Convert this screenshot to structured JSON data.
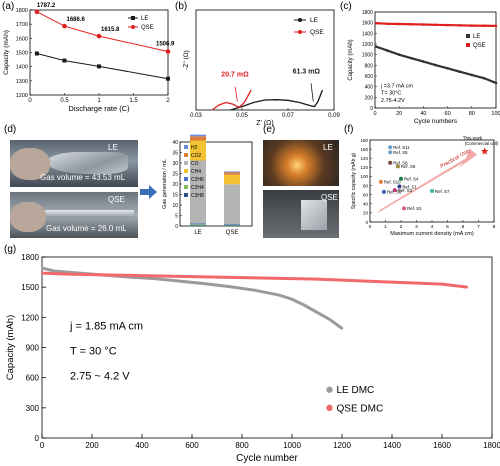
{
  "panel_letters": [
    "(a)",
    "(b)",
    "(c)",
    "(d)",
    "(e)",
    "(f)",
    "(g)"
  ],
  "photos": {
    "d_le_label": "LE",
    "d_le_gas": "Gas volume = 43.53 mL",
    "d_qse_label": "QSE",
    "d_qse_gas": "Gas volume = 26.0 mL",
    "e_top_label": "LE",
    "e_bottom_label": "QSE"
  },
  "colors": {
    "le": "#1a1a1a",
    "qse": "#e02020",
    "le_g": "#9a9a9a",
    "qse_g": "#f06a6a"
  },
  "chart_data": [
    {
      "id": "a",
      "type": "line",
      "xlabel": "Discharge rate  (C)",
      "ylabel": "Capacity (mAh)",
      "xlim": [
        0,
        2
      ],
      "ylim": [
        1200,
        1800
      ],
      "xticks": [
        0,
        0.5,
        1,
        1.5,
        2
      ],
      "yticks": [
        1200,
        1300,
        1400,
        1500,
        1600,
        1700,
        1800
      ],
      "legend": "top-right",
      "series": [
        {
          "name": "LE",
          "x": [
            0.1,
            0.5,
            1,
            2
          ],
          "values": [
            1493,
            1443,
            1402,
            1315
          ],
          "marker": "square"
        },
        {
          "name": "QSE",
          "x": [
            0.1,
            0.5,
            1,
            2
          ],
          "values": [
            1787.2,
            1686.6,
            1615.8,
            1506.9
          ],
          "marker": "circle"
        }
      ],
      "data_labels": [
        "1787.2",
        "1686.6",
        "1615.8",
        "1506.9"
      ]
    },
    {
      "id": "b",
      "type": "line",
      "xlabel": "Z'   (Ω)",
      "ylabel": "-Z''  (Ω)",
      "xlim": [
        0.03,
        0.09
      ],
      "ylim": [
        0,
        0.06
      ],
      "xticks": [
        0.03,
        0.05,
        0.07,
        0.09
      ],
      "legend": "top-right",
      "series": [
        {
          "name": "LE",
          "x": [
            0.045,
            0.05,
            0.055,
            0.06,
            0.065,
            0.07,
            0.075,
            0.08,
            0.0815,
            0.083,
            0.085
          ],
          "values": [
            0.0,
            0.002,
            0.0045,
            0.006,
            0.0062,
            0.0058,
            0.0045,
            0.0025,
            0.002,
            0.005,
            0.012
          ]
        },
        {
          "name": "QSE",
          "x": [
            0.037,
            0.04,
            0.043,
            0.046,
            0.048,
            0.049,
            0.051,
            0.054
          ],
          "values": [
            0.0,
            0.003,
            0.0045,
            0.0035,
            0.002,
            0.0018,
            0.0045,
            0.012
          ]
        }
      ],
      "annotations": [
        "20.7 mΩ",
        "61.3 mΩ"
      ]
    },
    {
      "id": "c",
      "type": "scatter",
      "xlabel": "Cycle numbers",
      "ylabel": "Capacity (mAh)",
      "xlim": [
        0,
        100
      ],
      "ylim": [
        0,
        1800
      ],
      "xticks": [
        0,
        20,
        40,
        60,
        80,
        100
      ],
      "yticks": [
        0,
        200,
        400,
        600,
        800,
        1000,
        1200,
        1400,
        1600,
        1800
      ],
      "legend": "right",
      "series": [
        {
          "name": "LE",
          "x": [
            1,
            10,
            20,
            30,
            40,
            50,
            60,
            70,
            80,
            90,
            100
          ],
          "values": [
            1150,
            1080,
            1000,
            935,
            870,
            805,
            745,
            680,
            620,
            560,
            470
          ]
        },
        {
          "name": "QSE",
          "x": [
            1,
            10,
            20,
            30,
            40,
            50,
            60,
            70,
            80,
            90,
            100
          ],
          "values": [
            1590,
            1580,
            1575,
            1570,
            1565,
            1560,
            1555,
            1550,
            1545,
            1542,
            1540
          ]
        }
      ],
      "annotations": [
        "j =3.7 mA cm",
        "T= 30°C",
        "2.75-4.2V"
      ]
    },
    {
      "id": "d",
      "type": "bar",
      "ylabel": "Gas generation / mL",
      "categories": [
        "LE",
        "QSE"
      ],
      "ylim": [
        0,
        40
      ],
      "yticks": [
        0,
        5,
        10,
        15,
        20,
        25,
        30,
        35,
        40
      ],
      "legend": "top-left",
      "series": [
        {
          "name": "H2",
          "values": [
            0.8,
            0.4
          ],
          "color": "#6a8fd8"
        },
        {
          "name": "CO2",
          "values": [
            2.0,
            1.2
          ],
          "color": "#e07b3a"
        },
        {
          "name": "CO",
          "values": [
            30.0,
            19.0
          ],
          "color": "#b4b4b4"
        },
        {
          "name": "CH4",
          "values": [
            9.5,
            4.5
          ],
          "color": "#f2c232"
        },
        {
          "name": "C2H6",
          "values": [
            0.4,
            0.4
          ],
          "color": "#4a74c8"
        },
        {
          "name": "C2H4",
          "values": [
            0.5,
            0.3
          ],
          "color": "#7bbd54"
        },
        {
          "name": "C3H8",
          "values": [
            0.3,
            0.2
          ],
          "color": "#33508a"
        }
      ]
    },
    {
      "id": "f",
      "type": "scatter",
      "xlabel": "Maximum current density (mA cm)",
      "ylabel": "Specific capacity (mAh g)",
      "xlim": [
        0,
        8
      ],
      "ylim": [
        0,
        180
      ],
      "xticks": [
        0,
        1,
        2,
        3,
        4,
        5,
        6,
        7,
        8
      ],
      "yticks": [
        0,
        20,
        40,
        60,
        80,
        100,
        120,
        140,
        160,
        180
      ],
      "points": [
        {
          "name": "Ref. S11",
          "x": 1.3,
          "y": 164,
          "color": "#6b9ec8"
        },
        {
          "name": "Ref. S5",
          "x": 1.3,
          "y": 153,
          "color": "#6b9ec8"
        },
        {
          "name": "Ref. S8",
          "x": 1.3,
          "y": 130,
          "color": "#7a4a3a"
        },
        {
          "name": "Ref. S9",
          "x": 1.8,
          "y": 122,
          "color": "#9a8a3a"
        },
        {
          "name": "Ref. S4",
          "x": 2.0,
          "y": 95,
          "color": "#1e7a4a"
        },
        {
          "name": "Ref. S10",
          "x": 0.7,
          "y": 88,
          "color": "#e07b3a"
        },
        {
          "name": "Ref. S1",
          "x": 1.9,
          "y": 78,
          "color": "#2a3a8a"
        },
        {
          "name": "Ref. S3",
          "x": 1.6,
          "y": 70,
          "color": "#c03a7a"
        },
        {
          "name": "Ref. S6",
          "x": 0.9,
          "y": 66,
          "color": "#3a5ab4"
        },
        {
          "name": "Ref. S7",
          "x": 4.0,
          "y": 68,
          "color": "#3ab4a0"
        },
        {
          "name": "Ref. S2",
          "x": 2.2,
          "y": 30,
          "color": "#d05a8a"
        }
      ],
      "highlight": {
        "name": "This work (Commercial cell)",
        "x": 7.4,
        "y": 155
      },
      "arrow_label": "Practical Use"
    },
    {
      "id": "g",
      "type": "scatter",
      "xlabel": "Cycle number",
      "ylabel": "Capacity (mAh)",
      "xlim": [
        0,
        1800
      ],
      "ylim": [
        0,
        1800
      ],
      "xticks": [
        0,
        200,
        400,
        600,
        800,
        1000,
        1200,
        1400,
        1600,
        1800
      ],
      "yticks": [
        0,
        300,
        600,
        900,
        1200,
        1500,
        1800
      ],
      "legend": "bottom-right",
      "series": [
        {
          "name": "LE DMC",
          "x": [
            1,
            50,
            150,
            250,
            350,
            450,
            550,
            650,
            750,
            850,
            950,
            1000,
            1050,
            1100,
            1150,
            1200
          ],
          "values": [
            1690,
            1660,
            1640,
            1620,
            1600,
            1585,
            1560,
            1535,
            1505,
            1470,
            1420,
            1380,
            1320,
            1250,
            1180,
            1090
          ]
        },
        {
          "name": "QSE DMC",
          "x": [
            1,
            100,
            200,
            300,
            400,
            500,
            600,
            700,
            800,
            900,
            1000,
            1100,
            1200,
            1300,
            1400,
            1500,
            1600,
            1700
          ],
          "values": [
            1640,
            1630,
            1625,
            1620,
            1615,
            1610,
            1605,
            1600,
            1595,
            1590,
            1585,
            1580,
            1570,
            1560,
            1550,
            1540,
            1530,
            1500
          ]
        }
      ],
      "annotations": [
        "j = 1.85 mA cm",
        "T = 30 °C",
        "2.75 ~ 4.2 V"
      ]
    }
  ]
}
